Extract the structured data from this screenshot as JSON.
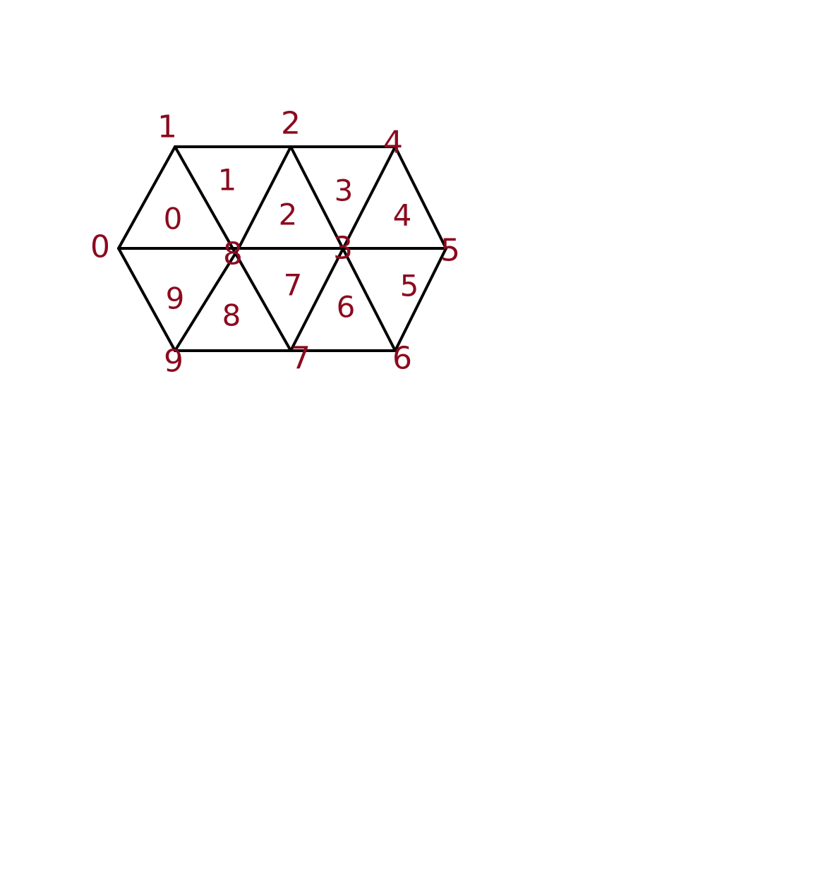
{
  "diagram": {
    "title": "",
    "colors": {
      "edge": "#000000",
      "label": "#8b0a1e",
      "background": "#ffffff"
    },
    "vertex_labels": [
      "0",
      "1",
      "2",
      "3",
      "4",
      "5",
      "6",
      "7",
      "8",
      "9"
    ],
    "triangle_labels": [
      "0",
      "1",
      "2",
      "3",
      "4",
      "5",
      "6",
      "7",
      "8",
      "9"
    ],
    "edges": [
      [
        "1",
        "4"
      ],
      [
        "0",
        "5"
      ],
      [
        "9",
        "6"
      ],
      [
        "0",
        "1"
      ],
      [
        "0",
        "9"
      ],
      [
        "1",
        "7"
      ],
      [
        "9",
        "8"
      ],
      [
        "2",
        "8"
      ],
      [
        "2",
        "6"
      ],
      [
        "4",
        "7"
      ],
      [
        "4",
        "5"
      ],
      [
        "5",
        "6"
      ]
    ]
  }
}
